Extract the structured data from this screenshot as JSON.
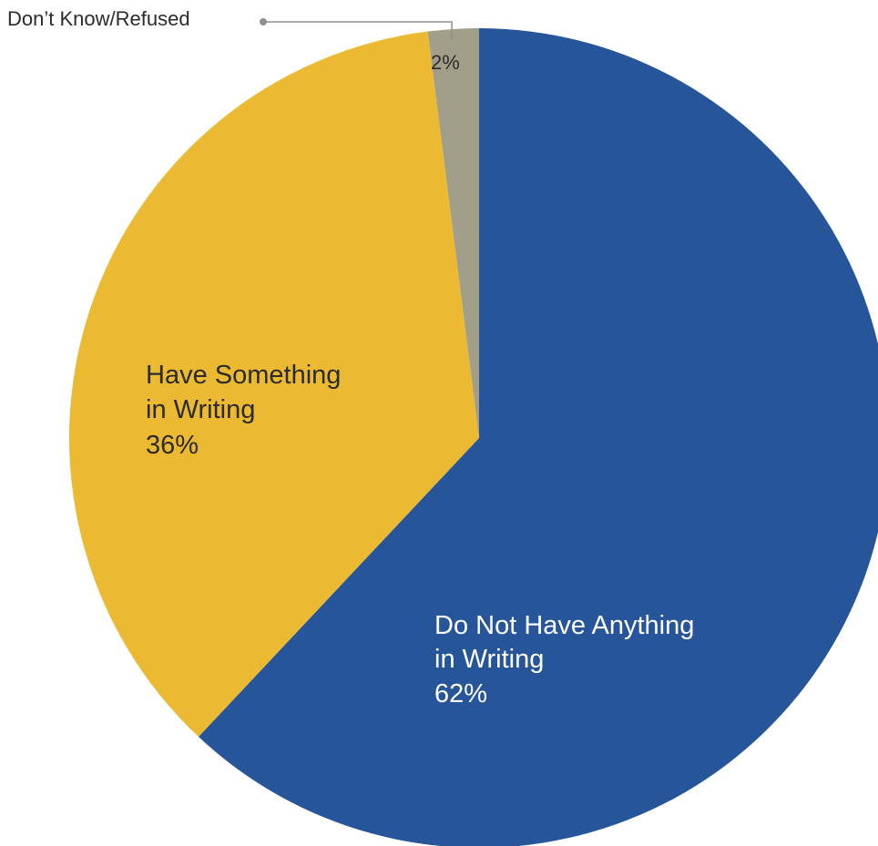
{
  "chart_data": {
    "type": "pie",
    "slices": [
      {
        "label_lines": [
          "Do Not Have Anything",
          "in Writing"
        ],
        "value": 62,
        "value_label": "62%",
        "color": "#26559a",
        "text_color": "#ffffff"
      },
      {
        "label_lines": [
          "Have Something",
          "in Writing"
        ],
        "value": 36,
        "value_label": "36%",
        "color": "#ecb932",
        "text_color": "#2b2b2b"
      },
      {
        "label_lines": [
          "Don’t Know/Refused"
        ],
        "value": 2,
        "value_label": "2%",
        "color": "#a19f89",
        "text_color": "#2b2b2b"
      }
    ]
  }
}
